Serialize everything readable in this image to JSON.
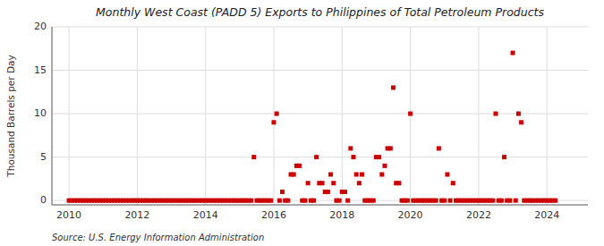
{
  "chart_data": {
    "type": "scatter",
    "title": "Monthly West Coast (PADD 5) Exports to Philippines of Total Petroleum Products",
    "y_label": "Thousand Barrels per Day",
    "annotations": [
      "Source: U.S. Energy Information Administration"
    ],
    "color": "#cc0000",
    "marker": "square",
    "grid": true,
    "xlim": [
      2009.5,
      2025.2
    ],
    "ylim": [
      -0.5,
      20
    ],
    "xticks": [
      2010,
      2012,
      2014,
      2016,
      2018,
      2020,
      2022,
      2024
    ],
    "yticks": [
      0,
      5,
      10,
      15,
      20
    ],
    "x": [
      2010.0,
      2010.083,
      2010.167,
      2010.25,
      2010.333,
      2010.417,
      2010.5,
      2010.583,
      2010.667,
      2010.75,
      2010.833,
      2010.917,
      2011.0,
      2011.083,
      2011.167,
      2011.25,
      2011.333,
      2011.417,
      2011.5,
      2011.583,
      2011.667,
      2011.75,
      2011.833,
      2011.917,
      2012.0,
      2012.083,
      2012.167,
      2012.25,
      2012.333,
      2012.417,
      2012.5,
      2012.583,
      2012.667,
      2012.75,
      2012.833,
      2012.917,
      2013.0,
      2013.083,
      2013.167,
      2013.25,
      2013.333,
      2013.417,
      2013.5,
      2013.583,
      2013.667,
      2013.75,
      2013.833,
      2013.917,
      2014.0,
      2014.083,
      2014.167,
      2014.25,
      2014.333,
      2014.417,
      2014.5,
      2014.583,
      2014.667,
      2014.75,
      2014.833,
      2014.917,
      2015.0,
      2015.083,
      2015.167,
      2015.25,
      2015.333,
      2015.417,
      2015.5,
      2015.583,
      2015.667,
      2015.75,
      2015.833,
      2015.917,
      2016.0,
      2016.083,
      2016.167,
      2016.25,
      2016.333,
      2016.417,
      2016.5,
      2016.583,
      2016.667,
      2016.75,
      2016.833,
      2016.917,
      2017.0,
      2017.083,
      2017.167,
      2017.25,
      2017.333,
      2017.417,
      2017.5,
      2017.583,
      2017.667,
      2017.75,
      2017.833,
      2017.917,
      2018.0,
      2018.083,
      2018.167,
      2018.25,
      2018.333,
      2018.417,
      2018.5,
      2018.583,
      2018.667,
      2018.75,
      2018.833,
      2018.917,
      2019.0,
      2019.083,
      2019.167,
      2019.25,
      2019.333,
      2019.417,
      2019.5,
      2019.583,
      2019.667,
      2019.75,
      2019.833,
      2019.917,
      2020.0,
      2020.083,
      2020.167,
      2020.25,
      2020.333,
      2020.417,
      2020.5,
      2020.583,
      2020.667,
      2020.75,
      2020.833,
      2020.917,
      2021.0,
      2021.083,
      2021.167,
      2021.25,
      2021.333,
      2021.417,
      2021.5,
      2021.583,
      2021.667,
      2021.75,
      2021.833,
      2021.917,
      2022.0,
      2022.083,
      2022.167,
      2022.25,
      2022.333,
      2022.417,
      2022.5,
      2022.583,
      2022.667,
      2022.75,
      2022.833,
      2022.917,
      2023.0,
      2023.083,
      2023.167,
      2023.25,
      2023.333,
      2023.417,
      2023.5,
      2023.583,
      2023.667,
      2023.75,
      2023.833,
      2023.917,
      2024.0,
      2024.083,
      2024.167,
      2024.25
    ],
    "values": [
      0,
      0,
      0,
      0,
      0,
      0,
      0,
      0,
      0,
      0,
      0,
      0,
      0,
      0,
      0,
      0,
      0,
      0,
      0,
      0,
      0,
      0,
      0,
      0,
      0,
      0,
      0,
      0,
      0,
      0,
      0,
      0,
      0,
      0,
      0,
      0,
      0,
      0,
      0,
      0,
      0,
      0,
      0,
      0,
      0,
      0,
      0,
      0,
      0,
      0,
      0,
      0,
      0,
      0,
      0,
      0,
      0,
      0,
      0,
      0,
      0,
      0,
      0,
      0,
      0,
      5,
      0,
      0,
      0,
      0,
      0,
      0,
      9,
      10,
      0,
      1,
      0,
      0,
      3,
      3,
      4,
      4,
      0,
      0,
      2,
      0,
      0,
      5,
      2,
      2,
      1,
      1,
      3,
      2,
      0,
      0,
      1,
      1,
      0,
      6,
      5,
      3,
      2,
      3,
      0,
      0,
      0,
      0,
      5,
      5,
      3,
      4,
      6,
      6,
      13,
      2,
      2,
      0,
      0,
      0,
      10,
      0,
      0,
      0,
      0,
      0,
      0,
      0,
      0,
      0,
      6,
      0,
      0,
      3,
      0,
      2,
      0,
      0,
      0,
      0,
      0,
      0,
      0,
      0,
      0,
      0,
      0,
      0,
      0,
      0,
      10,
      0,
      0,
      5,
      0,
      0,
      17,
      0,
      10,
      9,
      0,
      0,
      0,
      0,
      0,
      0,
      0,
      0,
      0,
      0,
      0,
      0
    ]
  }
}
